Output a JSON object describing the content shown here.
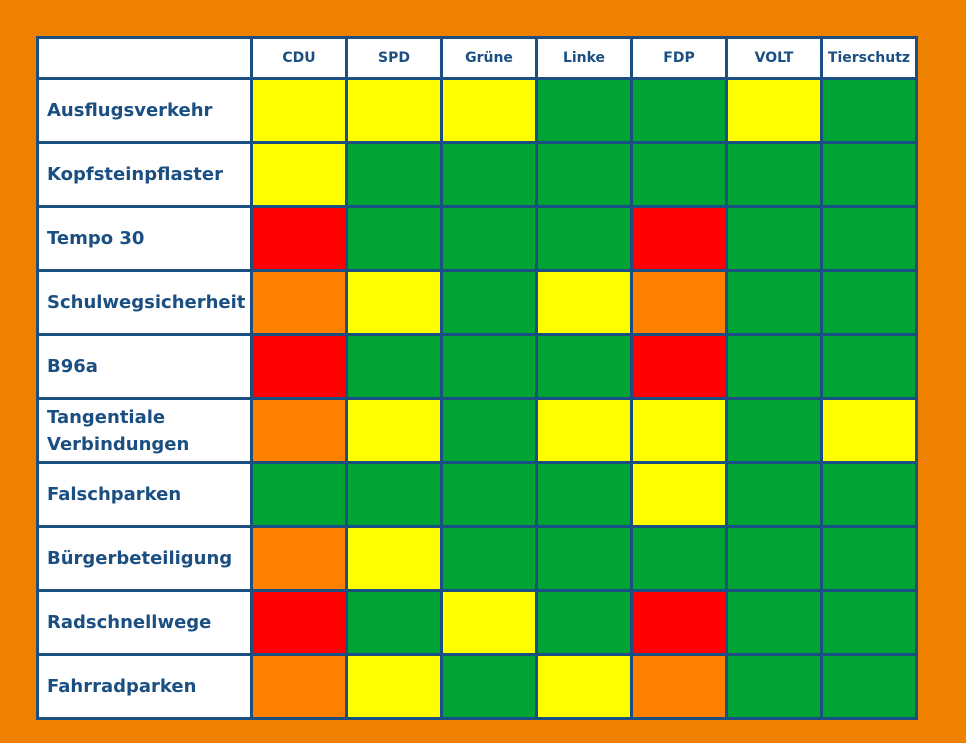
{
  "chart_data": {
    "type": "table",
    "columns": [
      "CDU",
      "SPD",
      "Grüne",
      "Linke",
      "FDP",
      "VOLT",
      "Tierschutz"
    ],
    "rows": [
      {
        "topic": "Ausflugsverkehr",
        "ratings": [
          "yellow",
          "yellow",
          "yellow",
          "green",
          "green",
          "yellow",
          "green"
        ]
      },
      {
        "topic": "Kopfsteinpflaster",
        "ratings": [
          "yellow",
          "green",
          "green",
          "green",
          "green",
          "green",
          "green"
        ]
      },
      {
        "topic": "Tempo 30",
        "ratings": [
          "red",
          "green",
          "green",
          "green",
          "red",
          "green",
          "green"
        ]
      },
      {
        "topic": "Schulwegsicherheit",
        "ratings": [
          "orange",
          "yellow",
          "green",
          "yellow",
          "orange",
          "green",
          "green"
        ]
      },
      {
        "topic": "B96a",
        "ratings": [
          "red",
          "green",
          "green",
          "green",
          "red",
          "green",
          "green"
        ]
      },
      {
        "topic": "Tangentiale Verbindungen",
        "ratings": [
          "orange",
          "yellow",
          "green",
          "yellow",
          "yellow",
          "green",
          "yellow"
        ]
      },
      {
        "topic": "Falschparken",
        "ratings": [
          "green",
          "green",
          "green",
          "green",
          "yellow",
          "green",
          "green"
        ]
      },
      {
        "topic": "Bürgerbeteiligung",
        "ratings": [
          "orange",
          "yellow",
          "green",
          "green",
          "green",
          "green",
          "green"
        ]
      },
      {
        "topic": "Radschnellwege",
        "ratings": [
          "red",
          "green",
          "yellow",
          "green",
          "red",
          "green",
          "green"
        ]
      },
      {
        "topic": "Fahrradparken",
        "ratings": [
          "orange",
          "yellow",
          "green",
          "yellow",
          "orange",
          "green",
          "green"
        ]
      }
    ],
    "rating_colors": {
      "green": "#00a535",
      "yellow": "#ffff00",
      "orange": "#ff7f00",
      "red": "#ff0000"
    },
    "colors": {
      "background": "#ee8200",
      "grid": "#1b4f82",
      "text": "#1b4f82",
      "header_fill": "#ffffff"
    }
  }
}
